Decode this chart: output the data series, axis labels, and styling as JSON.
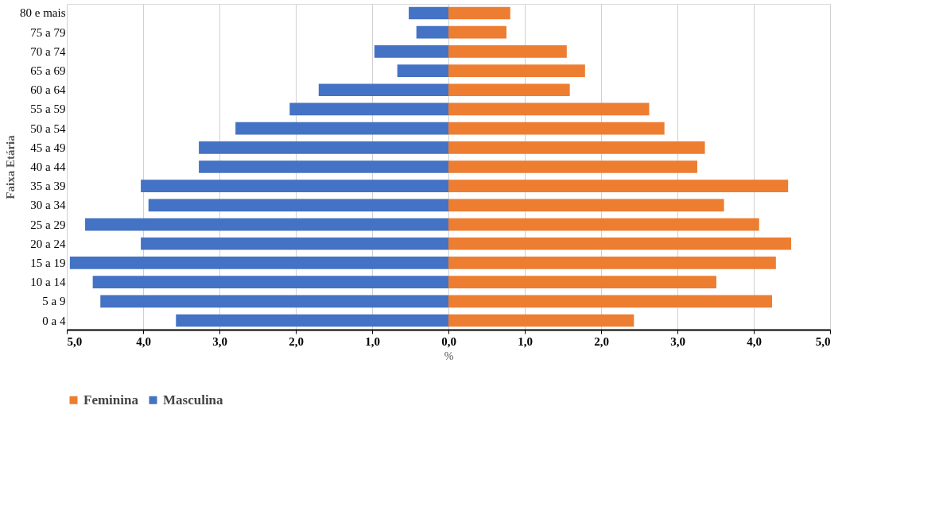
{
  "chart_data": {
    "type": "bar",
    "orientation": "horizontal",
    "stacked": true,
    "categories": [
      "80 e mais",
      "75 a 79",
      "70 a 74",
      "65 a 69",
      "60 a 64",
      "55 a 59",
      "50 a 54",
      "45 a 49",
      "40 a 44",
      "35 a 39",
      "30 a 34",
      "25 a 29",
      "20 a 24",
      "15 a 19",
      "10 a 14",
      "5 a 9",
      "0 a 4"
    ],
    "series": [
      {
        "name": "Feminina",
        "color": "#ed7d31",
        "values": [
          0.81,
          0.76,
          1.55,
          1.79,
          1.59,
          2.63,
          2.83,
          3.36,
          3.26,
          4.45,
          3.61,
          4.07,
          4.49,
          4.29,
          3.51,
          4.24,
          2.43
        ]
      },
      {
        "name": "Masculina",
        "color": "#4472c4",
        "values": [
          -0.52,
          -0.42,
          -0.97,
          -0.67,
          -1.7,
          -2.08,
          -2.79,
          -3.27,
          -3.27,
          -4.03,
          -3.93,
          -4.76,
          -4.03,
          -4.96,
          -4.66,
          -4.56,
          -3.57
        ]
      }
    ],
    "xlabel": "%",
    "ylabel": "Faixa Etária",
    "xlim": [
      -5,
      5
    ],
    "xticks": [
      {
        "value": -5,
        "label": "5,0"
      },
      {
        "value": -4,
        "label": "4,0"
      },
      {
        "value": -3,
        "label": "3,0"
      },
      {
        "value": -2,
        "label": "2,0"
      },
      {
        "value": -1,
        "label": "1,0"
      },
      {
        "value": 0,
        "label": "0,0"
      },
      {
        "value": 1,
        "label": "1,0"
      },
      {
        "value": 2,
        "label": "2,0"
      },
      {
        "value": 3,
        "label": "3,0"
      },
      {
        "value": 4,
        "label": "4,0"
      },
      {
        "value": 5,
        "label": "5,0"
      }
    ],
    "grid": "x",
    "legend": "bottom"
  }
}
